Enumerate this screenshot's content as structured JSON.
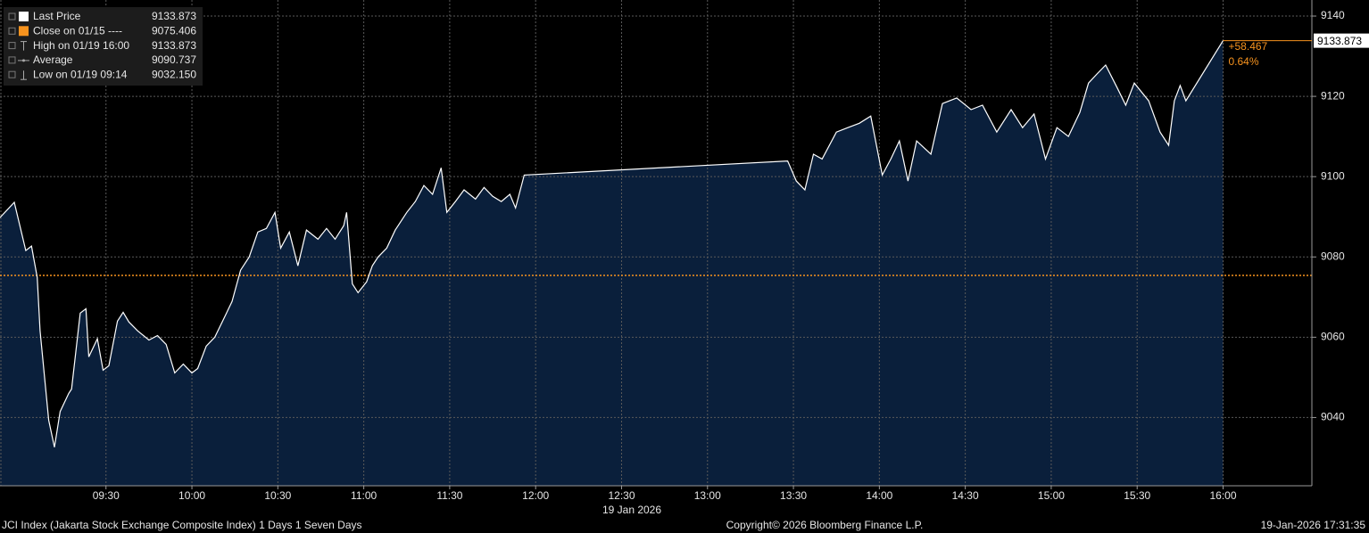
{
  "chart_data": {
    "type": "area",
    "series": [
      {
        "color": "#ffffff",
        "fill": "#0a1f3b",
        "x": [
          "08:53",
          "08:58",
          "09:02",
          "09:04",
          "09:06",
          "09:07",
          "09:10",
          "09:12",
          "09:14",
          "09:17",
          "09:18",
          "09:21",
          "09:23",
          "09:24",
          "09:27",
          "09:29",
          "09:31",
          "09:34",
          "09:36",
          "09:38",
          "09:41",
          "09:45",
          "09:48",
          "09:51",
          "09:54",
          "09:57",
          "10:00",
          "10:02",
          "10:05",
          "10:08",
          "10:11",
          "10:14",
          "10:17",
          "10:20",
          "10:23",
          "10:26",
          "10:29",
          "10:31",
          "10:34",
          "10:37",
          "10:40",
          "10:44",
          "10:47",
          "10:50",
          "10:53",
          "10:54",
          "10:56",
          "10:58",
          "11:01",
          "11:03",
          "11:05",
          "11:08",
          "11:11",
          "11:15",
          "11:18",
          "11:21",
          "11:24",
          "11:27",
          "11:29",
          "11:32",
          "11:35",
          "11:39",
          "11:42",
          "11:45",
          "11:48",
          "11:51",
          "11:53",
          "11:56",
          "13:28",
          "13:31",
          "13:34",
          "13:37",
          "13:40",
          "13:45",
          "13:49",
          "13:53",
          "13:57",
          "14:01",
          "14:04",
          "14:07",
          "14:10",
          "14:13",
          "14:18",
          "14:22",
          "14:27",
          "14:32",
          "14:36",
          "14:41",
          "14:46",
          "14:50",
          "14:54",
          "14:58",
          "15:02",
          "15:06",
          "15:10",
          "15:13",
          "15:16",
          "15:19",
          "15:23",
          "15:26",
          "15:29",
          "15:34",
          "15:38",
          "15:41",
          "15:43",
          "15:45",
          "15:47",
          "16:00"
        ],
        "values": [
          9089.8,
          9093.6,
          9081.6,
          9082.7,
          9074.9,
          9061.6,
          9039.3,
          9032.6,
          9041.5,
          9046,
          9047.1,
          9066,
          9067.1,
          9055.1,
          9059.6,
          9051.8,
          9052.9,
          9064,
          9066.2,
          9063.8,
          9061.6,
          9059.3,
          9060.4,
          9058.2,
          9051.1,
          9053.3,
          9051.1,
          9052.2,
          9057.8,
          9060,
          9064.4,
          9068.9,
          9076.7,
          9080,
          9086.2,
          9087.1,
          9091.1,
          9082.2,
          9086.2,
          9077.8,
          9086.7,
          9084.4,
          9087.1,
          9084.4,
          9087.8,
          9091.1,
          9073.3,
          9071.1,
          9073.8,
          9077.8,
          9080,
          9082.2,
          9086.7,
          9091.1,
          9093.8,
          9097.8,
          9095.6,
          9102.2,
          9091.1,
          9093.8,
          9096.7,
          9094.4,
          9097.3,
          9095.1,
          9093.8,
          9095.6,
          9092.2,
          9100.4,
          9103.9,
          9098.9,
          9096.7,
          9105.6,
          9104.4,
          9111.1,
          9112.2,
          9113.3,
          9115.1,
          9100.4,
          9104.4,
          9108.9,
          9098.9,
          9108.9,
          9105.6,
          9118.2,
          9119.6,
          9116.7,
          9117.8,
          9111.1,
          9116.7,
          9112.2,
          9115.6,
          9104.4,
          9112.2,
          9110,
          9116,
          9123.3,
          9125.6,
          9127.8,
          9122.2,
          9117.8,
          9123.3,
          9118.9,
          9111.1,
          9107.8,
          9118.9,
          9122.7,
          9118.9,
          9133.873
        ]
      }
    ],
    "stats": [
      {
        "name": "Last Price",
        "value": 9133.873
      },
      {
        "name": "Close on 01/15 ----",
        "value": 9075.406
      },
      {
        "name": "High on 01/19 16:00",
        "value": 9133.873
      },
      {
        "name": "Average",
        "value": 9090.737
      },
      {
        "name": "Low on 01/19 09:14",
        "value": 9032.15,
        "value_label": "9032.150"
      }
    ],
    "change": {
      "value": 58.467,
      "label": "+58.467"
    },
    "change_pct": {
      "value": 0.64,
      "label": "0.64%"
    },
    "close_color": "#f7931e",
    "xlim": [
      "08:53",
      "16:31"
    ],
    "xticks": [
      "09:30",
      "10:00",
      "10:30",
      "11:00",
      "11:30",
      "12:00",
      "12:30",
      "13:00",
      "13:30",
      "14:00",
      "14:30",
      "15:00",
      "15:30",
      "16:00"
    ],
    "x_label": "19 Jan 2026",
    "ylim": [
      9023,
      9144
    ],
    "yticks": [
      9040,
      9060,
      9080,
      9100,
      9120,
      9140
    ],
    "grid": true,
    "footer_left": "JCI Index (Jakarta Stock Exchange Composite Index) 1 Days 1 Seven Days",
    "footer_center": "Copyright© 2026 Bloomberg Finance L.P.",
    "footer_right": "19-Jan-2026 17:31:35"
  }
}
